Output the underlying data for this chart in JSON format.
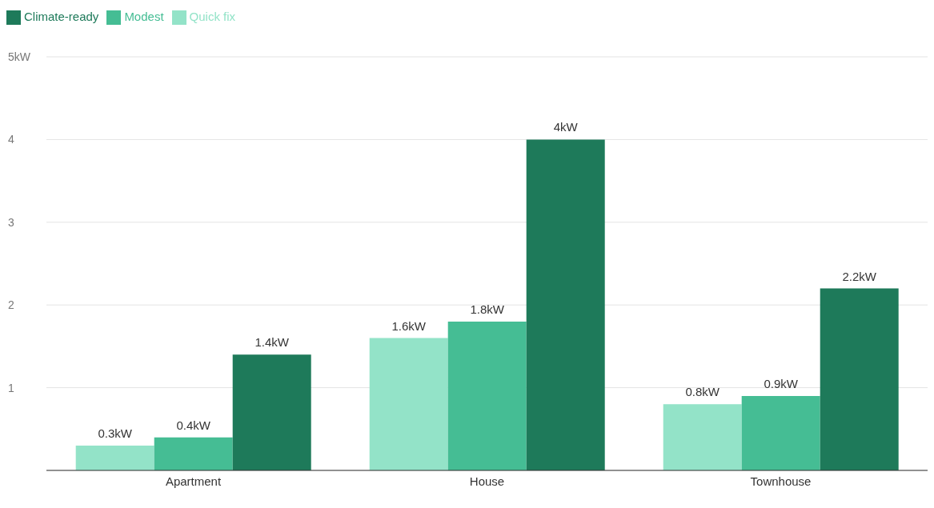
{
  "chart_data": {
    "type": "bar",
    "categories": [
      "Apartment",
      "House",
      "Townhouse"
    ],
    "series": [
      {
        "name": "Quick fix",
        "color": "#93e3c8",
        "values": [
          0.3,
          1.6,
          0.8
        ],
        "value_labels": [
          "0.3kW",
          "1.6kW",
          "0.8kW"
        ]
      },
      {
        "name": "Modest",
        "color": "#45bd94",
        "values": [
          0.4,
          1.8,
          0.9
        ],
        "value_labels": [
          "0.4kW",
          "1.8kW",
          "0.9kW"
        ]
      },
      {
        "name": "Climate-ready",
        "color": "#1e7a5a",
        "values": [
          1.4,
          4,
          2.2
        ],
        "value_labels": [
          "1.4kW",
          "4kW",
          "2.2kW"
        ]
      }
    ],
    "ylim": [
      0,
      5
    ],
    "yticks": [
      1,
      2,
      3,
      4,
      {
        "value": 5,
        "label": "5kW"
      }
    ],
    "grid": "y",
    "legend": "top left"
  }
}
